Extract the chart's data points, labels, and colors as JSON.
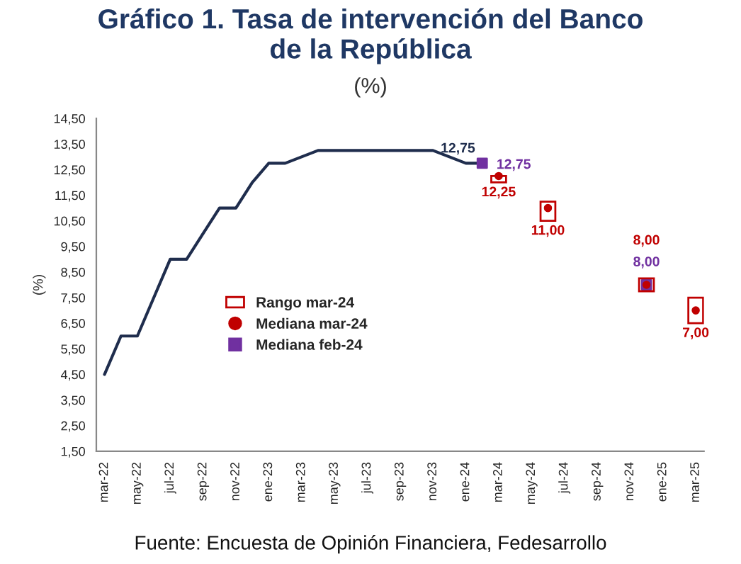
{
  "chart_data": {
    "type": "line",
    "title": "Gráfico 1. Tasa de intervención del Banco\nde la República",
    "subtitle": "(%)",
    "ylabel": "(%)",
    "annotations": [
      "Fuente: Encuesta de Opinión Financiera, Fedesarrollo"
    ],
    "categories": [
      "mar-22",
      null,
      "may-22",
      null,
      "jul-22",
      null,
      "sep-22",
      null,
      "nov-22",
      null,
      "ene-23",
      null,
      "mar-23",
      null,
      "may-23",
      null,
      "jul-23",
      null,
      "sep-23",
      null,
      "nov-23",
      null,
      "ene-24",
      null,
      "mar-24",
      null,
      "may-24",
      null,
      "jul-24",
      null,
      "sep-24",
      null,
      "nov-24",
      null,
      "ene-25",
      null,
      "mar-25"
    ],
    "ylim": [
      1.5,
      14.5
    ],
    "yticks": [
      {
        "value": 1.5,
        "label": "1,50"
      },
      {
        "value": 2.5,
        "label": "2,50"
      },
      {
        "value": 3.5,
        "label": "3,50"
      },
      {
        "value": 4.5,
        "label": "4,50"
      },
      {
        "value": 5.5,
        "label": "5,50"
      },
      {
        "value": 6.5,
        "label": "6,50"
      },
      {
        "value": 7.5,
        "label": "7,50"
      },
      {
        "value": 8.5,
        "label": "8,50"
      },
      {
        "value": 9.5,
        "label": "9,50"
      },
      {
        "value": 10.5,
        "label": "10,50"
      },
      {
        "value": 11.5,
        "label": "11,50"
      },
      {
        "value": 12.5,
        "label": "12,50"
      },
      {
        "value": 13.5,
        "label": "13,50"
      },
      {
        "value": 14.5,
        "label": "14,50"
      }
    ],
    "grid": false,
    "legend": "center",
    "series": [
      {
        "color": "#1f2d4d",
        "marker": "none",
        "line_style": "solid",
        "values": [
          4.5,
          6.0,
          6.0,
          7.5,
          9.0,
          9.0,
          10.0,
          11.0,
          11.0,
          12.0,
          12.75,
          12.75,
          13.0,
          13.25,
          13.25,
          13.25,
          13.25,
          13.25,
          13.25,
          13.25,
          13.25,
          13.0,
          12.75,
          12.75,
          null,
          null,
          null,
          null,
          null,
          null,
          null,
          null,
          null,
          null,
          null,
          null,
          null
        ],
        "value_labels": [
          null,
          null,
          null,
          null,
          null,
          null,
          null,
          null,
          null,
          null,
          null,
          null,
          null,
          null,
          null,
          null,
          null,
          null,
          null,
          null,
          null,
          null,
          "12,75",
          null,
          null,
          null,
          null,
          null,
          null,
          null,
          null,
          null,
          null,
          null,
          null,
          null,
          null
        ]
      },
      {
        "type": "bar",
        "name": "Rango mar-24",
        "color": "#c00000",
        "values": [
          null,
          null,
          null,
          null,
          null,
          null,
          null,
          null,
          null,
          null,
          null,
          null,
          null,
          null,
          null,
          null,
          null,
          null,
          null,
          null,
          null,
          null,
          null,
          null,
          0.25,
          null,
          null,
          0.75,
          null,
          null,
          null,
          null,
          null,
          0.5,
          null,
          null,
          1.0
        ],
        "base": [
          null,
          null,
          null,
          null,
          null,
          null,
          null,
          null,
          null,
          null,
          null,
          null,
          null,
          null,
          null,
          null,
          null,
          null,
          null,
          null,
          null,
          null,
          null,
          null,
          12.0,
          null,
          null,
          10.5,
          null,
          null,
          null,
          null,
          null,
          7.75,
          null,
          null,
          6.5
        ]
      },
      {
        "type": "scatter",
        "name": "Mediana mar-24",
        "color": "#c00000",
        "marker": "circle",
        "values": [
          null,
          null,
          null,
          null,
          null,
          null,
          null,
          null,
          null,
          null,
          null,
          null,
          null,
          null,
          null,
          null,
          null,
          null,
          null,
          null,
          null,
          null,
          null,
          null,
          12.25,
          null,
          null,
          11.0,
          null,
          null,
          null,
          null,
          null,
          8.0,
          null,
          null,
          7.0
        ],
        "value_labels": [
          null,
          null,
          null,
          null,
          null,
          null,
          null,
          null,
          null,
          null,
          null,
          null,
          null,
          null,
          null,
          null,
          null,
          null,
          null,
          null,
          null,
          null,
          null,
          null,
          "12,25",
          null,
          null,
          "11,00",
          null,
          null,
          null,
          null,
          null,
          "8,00",
          null,
          null,
          "7,00"
        ]
      },
      {
        "type": "scatter",
        "name": "Mediana feb-24",
        "color": "#7030a0",
        "marker": "square",
        "values": [
          null,
          null,
          null,
          null,
          null,
          null,
          null,
          null,
          null,
          null,
          null,
          null,
          null,
          null,
          null,
          null,
          null,
          null,
          null,
          null,
          null,
          null,
          null,
          12.75,
          null,
          null,
          null,
          null,
          null,
          null,
          null,
          null,
          null,
          8.0,
          null,
          null,
          null
        ],
        "value_labels": [
          null,
          null,
          null,
          null,
          null,
          null,
          null,
          null,
          null,
          null,
          null,
          null,
          null,
          null,
          null,
          null,
          null,
          null,
          null,
          null,
          null,
          null,
          null,
          "12,75",
          null,
          null,
          null,
          null,
          null,
          null,
          null,
          null,
          null,
          "8,00",
          null,
          null,
          null
        ]
      }
    ]
  }
}
